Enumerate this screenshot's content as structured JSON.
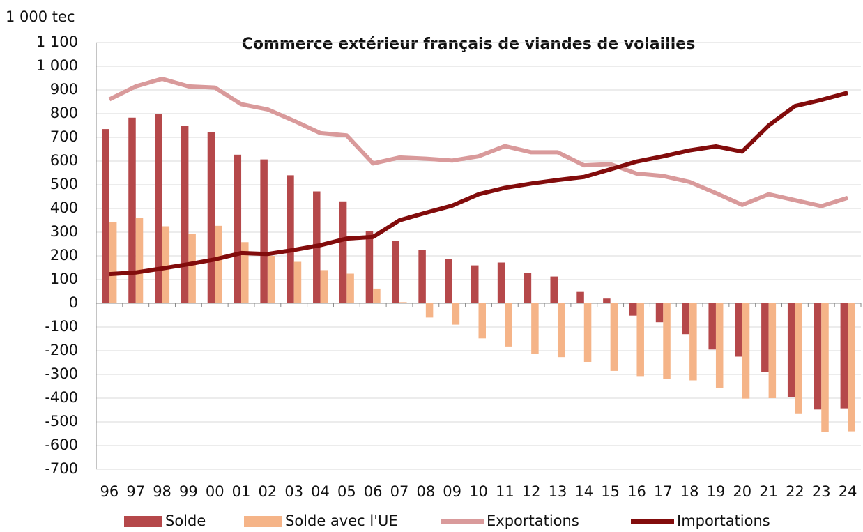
{
  "chart_data": {
    "type": "bar",
    "title": "Commerce extérieur français de viandes de volailles",
    "y_label": "1 000 tec",
    "categories": [
      "96",
      "97",
      "98",
      "99",
      "00",
      "01",
      "02",
      "03",
      "04",
      "05",
      "06",
      "07",
      "08",
      "09",
      "10",
      "11",
      "12",
      "13",
      "14",
      "15",
      "16",
      "17",
      "18",
      "19",
      "20",
      "21",
      "22",
      "23",
      "24"
    ],
    "series": [
      {
        "name": "Solde",
        "type": "bar",
        "color": "#b5484a",
        "values": [
          735,
          783,
          797,
          748,
          723,
          627,
          607,
          540,
          472,
          430,
          305,
          262,
          225,
          187,
          160,
          172,
          127,
          113,
          48,
          20,
          -52,
          -80,
          -130,
          -195,
          -225,
          -290,
          -395,
          -448,
          -443
        ]
      },
      {
        "name": "Solde avec l'UE",
        "type": "bar",
        "color": "#f5b488",
        "values": [
          343,
          360,
          325,
          293,
          327,
          258,
          200,
          175,
          140,
          125,
          62,
          5,
          -60,
          -90,
          -148,
          -182,
          -213,
          -227,
          -247,
          -285,
          -307,
          -318,
          -325,
          -357,
          -402,
          -400,
          -467,
          -542,
          -540
        ]
      },
      {
        "name": "Exportations",
        "type": "line",
        "color": "#d99a9b",
        "values": [
          860,
          915,
          947,
          915,
          910,
          840,
          818,
          770,
          718,
          708,
          590,
          615,
          610,
          602,
          620,
          663,
          637,
          637,
          582,
          587,
          547,
          537,
          512,
          465,
          415,
          460,
          435,
          410,
          445
        ]
      },
      {
        "name": "Importations",
        "type": "line",
        "color": "#820c0c",
        "values": [
          123,
          130,
          147,
          165,
          185,
          212,
          208,
          225,
          245,
          273,
          280,
          350,
          382,
          412,
          460,
          487,
          505,
          520,
          533,
          565,
          598,
          620,
          645,
          662,
          640,
          750,
          832,
          858,
          888
        ]
      }
    ],
    "ylim": [
      -700,
      1100
    ],
    "yticks": [
      -700,
      -600,
      -500,
      -400,
      -300,
      -200,
      -100,
      0,
      100,
      200,
      300,
      400,
      500,
      600,
      700,
      800,
      900,
      {
        "value": 1000,
        "label": "1 000"
      },
      {
        "value": 1100,
        "label": "1 100"
      }
    ],
    "grid": true,
    "legend": "bottom"
  }
}
